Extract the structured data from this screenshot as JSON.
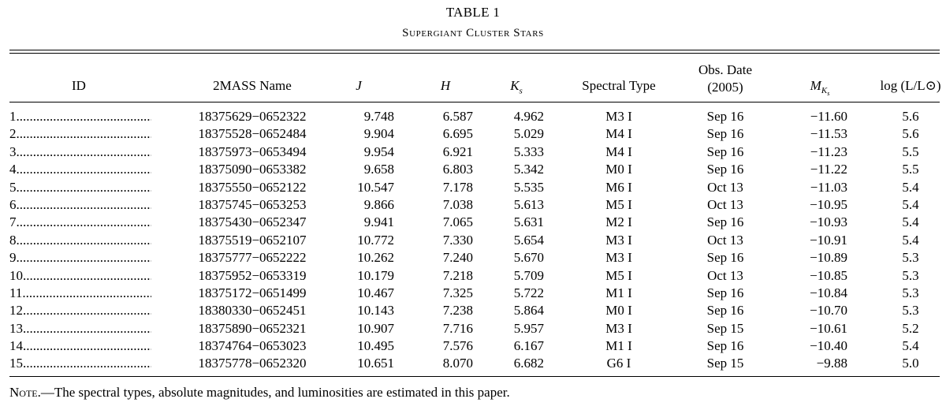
{
  "table": {
    "title": "TABLE 1",
    "subtitle": "Supergiant Cluster Stars"
  },
  "columns": {
    "id": "ID",
    "mass_name": "2MASS Name",
    "j": "J",
    "h": "H",
    "ks": "K",
    "ks_sub": "s",
    "spectral_type": "Spectral Type",
    "obs_date_line1": "Obs. Date",
    "obs_date_line2": "(2005)",
    "mk": "M",
    "mk_sub": "K",
    "mk_subsub": "s",
    "log_lum": "log (L/L⊙)"
  },
  "rows": [
    {
      "id": "1.........................................",
      "name": "18375629−0652322",
      "j": "9.748",
      "h": "6.587",
      "ks": "4.962",
      "spec": "M3 I",
      "obs": "Sep 16",
      "mk": "−11.60",
      "lum": "5.6"
    },
    {
      "id": "2.........................................",
      "name": "18375528−0652484",
      "j": "9.904",
      "h": "6.695",
      "ks": "5.029",
      "spec": "M4 I",
      "obs": "Sep 16",
      "mk": "−11.53",
      "lum": "5.6"
    },
    {
      "id": "3.........................................",
      "name": "18375973−0653494",
      "j": "9.954",
      "h": "6.921",
      "ks": "5.333",
      "spec": "M4 I",
      "obs": "Sep 16",
      "mk": "−11.23",
      "lum": "5.5"
    },
    {
      "id": "4.........................................",
      "name": "18375090−0653382",
      "j": "9.658",
      "h": "6.803",
      "ks": "5.342",
      "spec": "M0 I",
      "obs": "Sep 16",
      "mk": "−11.22",
      "lum": "5.5"
    },
    {
      "id": "5.........................................",
      "name": "18375550−0652122",
      "j": "10.547",
      "h": "7.178",
      "ks": "5.535",
      "spec": "M6 I",
      "obs": "Oct 13",
      "mk": "−11.03",
      "lum": "5.4"
    },
    {
      "id": "6.........................................",
      "name": "18375745−0653253",
      "j": "9.866",
      "h": "7.038",
      "ks": "5.613",
      "spec": "M5 I",
      "obs": "Oct 13",
      "mk": "−10.95",
      "lum": "5.4"
    },
    {
      "id": "7.........................................",
      "name": "18375430−0652347",
      "j": "9.941",
      "h": "7.065",
      "ks": "5.631",
      "spec": "M2 I",
      "obs": "Sep 16",
      "mk": "−10.93",
      "lum": "5.4"
    },
    {
      "id": "8.........................................",
      "name": "18375519−0652107",
      "j": "10.772",
      "h": "7.330",
      "ks": "5.654",
      "spec": "M3 I",
      "obs": "Oct 13",
      "mk": "−10.91",
      "lum": "5.4"
    },
    {
      "id": "9.........................................",
      "name": "18375777−0652222",
      "j": "10.262",
      "h": "7.240",
      "ks": "5.670",
      "spec": "M3 I",
      "obs": "Sep 16",
      "mk": "−10.89",
      "lum": "5.3"
    },
    {
      "id": "10.......................................",
      "name": "18375952−0653319",
      "j": "10.179",
      "h": "7.218",
      "ks": "5.709",
      "spec": "M5 I",
      "obs": "Oct 13",
      "mk": "−10.85",
      "lum": "5.3"
    },
    {
      "id": "11.......................................",
      "name": "18375172−0651499",
      "j": "10.467",
      "h": "7.325",
      "ks": "5.722",
      "spec": "M1 I",
      "obs": "Sep 16",
      "mk": "−10.84",
      "lum": "5.3"
    },
    {
      "id": "12.......................................",
      "name": "18380330−0652451",
      "j": "10.143",
      "h": "7.238",
      "ks": "5.864",
      "spec": "M0 I",
      "obs": "Sep 16",
      "mk": "−10.70",
      "lum": "5.3"
    },
    {
      "id": "13.......................................",
      "name": "18375890−0652321",
      "j": "10.907",
      "h": "7.716",
      "ks": "5.957",
      "spec": "M3 I",
      "obs": "Sep 15",
      "mk": "−10.61",
      "lum": "5.2"
    },
    {
      "id": "14.......................................",
      "name": "18374764−0653023",
      "j": "10.495",
      "h": "7.576",
      "ks": "6.167",
      "spec": "M1 I",
      "obs": "Sep 16",
      "mk": "−10.40",
      "lum": "5.4"
    },
    {
      "id": "15.......................................",
      "name": "18375778−0652320",
      "j": "10.651",
      "h": "8.070",
      "ks": "6.682",
      "spec": "G6 I",
      "obs": "Sep 15",
      "mk": "−9.88",
      "lum": "5.0"
    }
  ],
  "note": {
    "label": "Note.",
    "text": "—The spectral types, absolute magnitudes, and luminosities are estimated in this paper."
  }
}
